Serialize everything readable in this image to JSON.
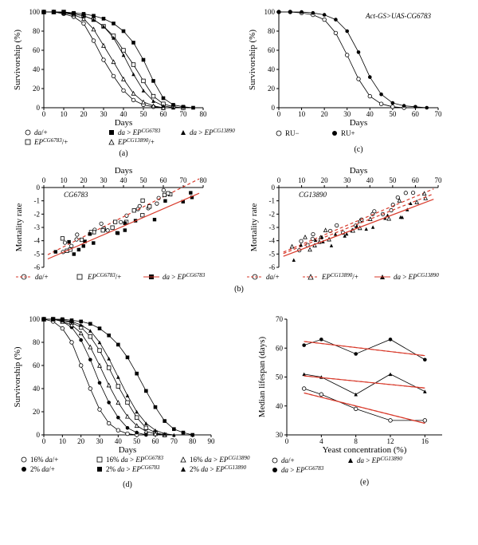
{
  "colors": {
    "bg": "#ffffff",
    "axis": "#000000",
    "marker": "#000000",
    "fit": "#d83a2b"
  },
  "panels": {
    "a": {
      "tag": "(a)",
      "xlabel": "Days",
      "ylabel": "Survivorship (%)",
      "xlim": [
        0,
        80
      ],
      "ylim": [
        0,
        100
      ],
      "xtick": 10,
      "ytick": 20,
      "series": [
        {
          "name": "da/+",
          "marker": "open-circle",
          "data": [
            [
              0,
              100
            ],
            [
              5,
              100
            ],
            [
              10,
              98
            ],
            [
              15,
              95
            ],
            [
              20,
              88
            ],
            [
              25,
              70
            ],
            [
              30,
              50
            ],
            [
              35,
              33
            ],
            [
              40,
              18
            ],
            [
              45,
              8
            ],
            [
              50,
              3
            ],
            [
              55,
              1
            ],
            [
              60,
              0
            ]
          ]
        },
        {
          "name": "EPCG6783/+",
          "marker": "open-square",
          "data": [
            [
              0,
              100
            ],
            [
              5,
              100
            ],
            [
              10,
              100
            ],
            [
              15,
              98
            ],
            [
              20,
              96
            ],
            [
              25,
              92
            ],
            [
              30,
              85
            ],
            [
              35,
              75
            ],
            [
              40,
              60
            ],
            [
              45,
              45
            ],
            [
              50,
              28
            ],
            [
              55,
              12
            ],
            [
              60,
              4
            ],
            [
              65,
              1
            ],
            [
              70,
              0
            ]
          ]
        },
        {
          "name": "da>EPCG6783",
          "marker": "filled-square",
          "data": [
            [
              0,
              100
            ],
            [
              5,
              100
            ],
            [
              10,
              100
            ],
            [
              15,
              99
            ],
            [
              20,
              98
            ],
            [
              25,
              96
            ],
            [
              30,
              93
            ],
            [
              35,
              88
            ],
            [
              40,
              80
            ],
            [
              45,
              68
            ],
            [
              50,
              50
            ],
            [
              55,
              28
            ],
            [
              60,
              10
            ],
            [
              65,
              3
            ],
            [
              70,
              1
            ],
            [
              75,
              0
            ]
          ]
        },
        {
          "name": "EPCG13890/+",
          "marker": "open-triangle",
          "data": [
            [
              0,
              100
            ],
            [
              5,
              100
            ],
            [
              10,
              99
            ],
            [
              15,
              97
            ],
            [
              20,
              93
            ],
            [
              25,
              82
            ],
            [
              30,
              65
            ],
            [
              35,
              48
            ],
            [
              40,
              30
            ],
            [
              45,
              15
            ],
            [
              50,
              6
            ],
            [
              55,
              2
            ],
            [
              60,
              0
            ]
          ]
        },
        {
          "name": "da>EPCG13890",
          "marker": "filled-triangle",
          "data": [
            [
              0,
              100
            ],
            [
              5,
              100
            ],
            [
              10,
              99
            ],
            [
              15,
              98
            ],
            [
              20,
              96
            ],
            [
              25,
              92
            ],
            [
              30,
              85
            ],
            [
              35,
              73
            ],
            [
              40,
              55
            ],
            [
              45,
              35
            ],
            [
              50,
              18
            ],
            [
              55,
              7
            ],
            [
              60,
              2
            ],
            [
              65,
              0
            ]
          ]
        }
      ]
    },
    "c": {
      "tag": "(c)",
      "title": "Act-GS>UAS-CG6783",
      "xlabel": "Days",
      "ylabel": "Survivorship (%)",
      "xlim": [
        0,
        70
      ],
      "ylim": [
        0,
        100
      ],
      "xtick": 10,
      "ytick": 20,
      "series": [
        {
          "name": "RU−",
          "marker": "open-circle",
          "data": [
            [
              0,
              100
            ],
            [
              5,
              100
            ],
            [
              10,
              99
            ],
            [
              15,
              97
            ],
            [
              20,
              92
            ],
            [
              25,
              78
            ],
            [
              30,
              55
            ],
            [
              35,
              30
            ],
            [
              40,
              12
            ],
            [
              45,
              4
            ],
            [
              50,
              1
            ],
            [
              55,
              0
            ]
          ]
        },
        {
          "name": "RU+",
          "marker": "filled-circle",
          "data": [
            [
              0,
              100
            ],
            [
              5,
              100
            ],
            [
              10,
              100
            ],
            [
              15,
              99
            ],
            [
              20,
              97
            ],
            [
              25,
              92
            ],
            [
              30,
              80
            ],
            [
              35,
              58
            ],
            [
              40,
              32
            ],
            [
              45,
              14
            ],
            [
              50,
              5
            ],
            [
              55,
              2
            ],
            [
              60,
              1
            ],
            [
              65,
              0
            ]
          ]
        }
      ]
    },
    "b1": {
      "tag": "",
      "title": "CG6783",
      "xlabel": "Days",
      "ylabel": "Mortality rate",
      "xlim": [
        0,
        80
      ],
      "ylim": [
        -6,
        0
      ],
      "xtick": 10,
      "ytick": 1,
      "xaxis_top": true,
      "series": [
        {
          "name": "da/+",
          "marker": "open-circle",
          "fit": {
            "m": 0.075,
            "b": -5.2,
            "dash": true
          }
        },
        {
          "name": "EPCG6783/+",
          "marker": "open-square",
          "fit": null
        },
        {
          "name": "da>EPCG6783",
          "marker": "filled-square",
          "fit": {
            "m": 0.065,
            "b": -5.5,
            "dash": false
          }
        }
      ]
    },
    "b2": {
      "tag": "(b)",
      "title": "CG13890",
      "xlabel": "Days",
      "ylabel": "Mortality rate",
      "xlim": [
        0,
        70
      ],
      "ylim": [
        -6,
        0
      ],
      "xtick": 10,
      "ytick": 1,
      "xaxis_top": true,
      "series": [
        {
          "name": "da/+",
          "marker": "open-circle",
          "fit": {
            "m": 0.072,
            "b": -5.0,
            "dash": true
          }
        },
        {
          "name": "EPCG13890/+",
          "marker": "open-triangle",
          "fit": {
            "m": 0.068,
            "b": -5.1,
            "dash": true
          }
        },
        {
          "name": "da>EPCG13890",
          "marker": "filled-triangle",
          "fit": {
            "m": 0.065,
            "b": -5.3,
            "dash": false
          }
        }
      ]
    },
    "d": {
      "tag": "(d)",
      "xlabel": "Days",
      "ylabel": "Survivorship (%)",
      "xlim": [
        0,
        90
      ],
      "ylim": [
        0,
        100
      ],
      "xtick": 10,
      "ytick": 20,
      "series": [
        {
          "name": "16% da/+",
          "marker": "open-circle",
          "data": [
            [
              0,
              100
            ],
            [
              5,
              98
            ],
            [
              10,
              92
            ],
            [
              15,
              80
            ],
            [
              20,
              60
            ],
            [
              25,
              40
            ],
            [
              30,
              22
            ],
            [
              35,
              10
            ],
            [
              40,
              4
            ],
            [
              45,
              1
            ],
            [
              50,
              0
            ]
          ]
        },
        {
          "name": "2% da/+",
          "marker": "filled-circle",
          "data": [
            [
              0,
              100
            ],
            [
              5,
              100
            ],
            [
              10,
              98
            ],
            [
              15,
              93
            ],
            [
              20,
              82
            ],
            [
              25,
              65
            ],
            [
              30,
              45
            ],
            [
              35,
              28
            ],
            [
              40,
              15
            ],
            [
              45,
              6
            ],
            [
              50,
              2
            ],
            [
              55,
              0
            ]
          ]
        },
        {
          "name": "16% da>EPCG6783",
          "marker": "open-square",
          "data": [
            [
              0,
              100
            ],
            [
              5,
              100
            ],
            [
              10,
              99
            ],
            [
              15,
              97
            ],
            [
              20,
              93
            ],
            [
              25,
              85
            ],
            [
              30,
              73
            ],
            [
              35,
              58
            ],
            [
              40,
              42
            ],
            [
              45,
              28
            ],
            [
              50,
              15
            ],
            [
              55,
              6
            ],
            [
              60,
              2
            ],
            [
              65,
              0
            ]
          ]
        },
        {
          "name": "2% da>EPCG6783",
          "marker": "filled-square",
          "data": [
            [
              0,
              100
            ],
            [
              5,
              100
            ],
            [
              10,
              100
            ],
            [
              15,
              99
            ],
            [
              20,
              98
            ],
            [
              25,
              96
            ],
            [
              30,
              92
            ],
            [
              35,
              86
            ],
            [
              40,
              78
            ],
            [
              45,
              67
            ],
            [
              50,
              53
            ],
            [
              55,
              38
            ],
            [
              60,
              24
            ],
            [
              65,
              12
            ],
            [
              70,
              5
            ],
            [
              75,
              2
            ],
            [
              80,
              0
            ]
          ]
        },
        {
          "name": "16% da>EPCG13890",
          "marker": "open-triangle",
          "data": [
            [
              0,
              100
            ],
            [
              5,
              100
            ],
            [
              10,
              98
            ],
            [
              15,
              95
            ],
            [
              20,
              88
            ],
            [
              25,
              76
            ],
            [
              30,
              60
            ],
            [
              35,
              43
            ],
            [
              40,
              28
            ],
            [
              45,
              16
            ],
            [
              50,
              8
            ],
            [
              55,
              3
            ],
            [
              60,
              1
            ],
            [
              65,
              0
            ]
          ]
        },
        {
          "name": "2% da>EPCG13890",
          "marker": "filled-triangle",
          "data": [
            [
              0,
              100
            ],
            [
              5,
              100
            ],
            [
              10,
              99
            ],
            [
              15,
              98
            ],
            [
              20,
              95
            ],
            [
              25,
              90
            ],
            [
              30,
              80
            ],
            [
              35,
              66
            ],
            [
              40,
              50
            ],
            [
              45,
              34
            ],
            [
              50,
              20
            ],
            [
              55,
              10
            ],
            [
              60,
              4
            ],
            [
              65,
              1
            ],
            [
              70,
              0
            ]
          ]
        }
      ]
    },
    "e": {
      "tag": "(e)",
      "xlabel": "Yeast concentration (%)",
      "ylabel": "Median lifespan (days)",
      "xlim": [
        0,
        18
      ],
      "ylim": [
        30,
        70
      ],
      "xticks": [
        0,
        4,
        8,
        12,
        16
      ],
      "ytick": 10,
      "series": [
        {
          "name": "da/+",
          "marker": "open-circle",
          "data": [
            [
              2,
              46
            ],
            [
              4,
              44
            ],
            [
              8,
              39
            ],
            [
              12,
              35
            ],
            [
              16,
              35
            ]
          ],
          "fit": {
            "m": -0.75,
            "b": 46
          }
        },
        {
          "name": "da>EPCG6783",
          "marker": "filled-circle",
          "data": [
            [
              2,
              61
            ],
            [
              4,
              63
            ],
            [
              8,
              58
            ],
            [
              12,
              63
            ],
            [
              16,
              56
            ]
          ],
          "fit": {
            "m": -0.35,
            "b": 63
          }
        },
        {
          "name": "da>EPCG13890",
          "marker": "filled-triangle",
          "data": [
            [
              2,
              51
            ],
            [
              4,
              50
            ],
            [
              8,
              44
            ],
            [
              12,
              51
            ],
            [
              16,
              45
            ]
          ],
          "fit": {
            "m": -0.3,
            "b": 51
          }
        }
      ]
    }
  },
  "legend_labels": {
    "da/+": [
      "da",
      "/+"
    ],
    "EPCG6783/+": [
      "EP",
      "CG6783",
      "/+"
    ],
    "da>EPCG6783": [
      "da",
      ">",
      "EP",
      "CG6783"
    ],
    "EPCG13890/+": [
      "EP",
      "CG13890",
      "/+"
    ],
    "da>EPCG13890": [
      "da",
      ">",
      "EP",
      "CG13890"
    ],
    "RU-": "RU−",
    "RU+": "RU+",
    "16da": "16% ",
    "2da": "2% "
  }
}
